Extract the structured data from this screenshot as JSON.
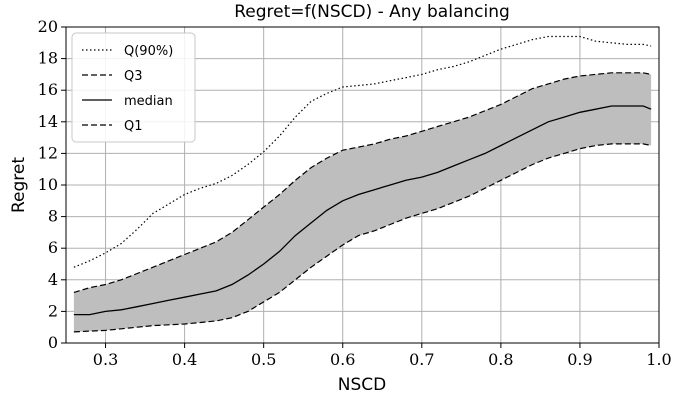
{
  "chart_data": {
    "type": "line",
    "title": "Regret=f(NSCD) - Any balancing",
    "xlabel": "NSCD",
    "ylabel": "Regret",
    "xlim": [
      0.25,
      1.0
    ],
    "ylim": [
      0,
      20
    ],
    "xticks": [
      0.3,
      0.4,
      0.5,
      0.6,
      0.7,
      0.8,
      0.9,
      1.0
    ],
    "xtick_labels": [
      "0.3",
      "0.4",
      "0.5",
      "0.6",
      "0.7",
      "0.8",
      "0.9",
      "1.0"
    ],
    "yticks": [
      0,
      2,
      4,
      6,
      8,
      10,
      12,
      14,
      16,
      18,
      20
    ],
    "ytick_labels": [
      "0",
      "2",
      "4",
      "6",
      "8",
      "10",
      "12",
      "14",
      "16",
      "18",
      "20"
    ],
    "grid": true,
    "legend_position": "top-left",
    "shaded_band": "between Q1 and Q3",
    "band_color": "#bebebe",
    "x": [
      0.26,
      0.28,
      0.3,
      0.32,
      0.34,
      0.36,
      0.38,
      0.4,
      0.42,
      0.44,
      0.46,
      0.48,
      0.5,
      0.52,
      0.54,
      0.56,
      0.58,
      0.6,
      0.62,
      0.64,
      0.66,
      0.68,
      0.7,
      0.72,
      0.74,
      0.76,
      0.78,
      0.8,
      0.82,
      0.84,
      0.86,
      0.88,
      0.9,
      0.92,
      0.94,
      0.96,
      0.98,
      0.99
    ],
    "series": [
      {
        "name": "Q(90%)",
        "style": "dotted",
        "values": [
          4.8,
          5.2,
          5.7,
          6.3,
          7.2,
          8.2,
          8.8,
          9.4,
          9.8,
          10.1,
          10.6,
          11.3,
          12.1,
          13.1,
          14.3,
          15.3,
          15.8,
          16.2,
          16.3,
          16.4,
          16.6,
          16.8,
          17.0,
          17.3,
          17.5,
          17.8,
          18.2,
          18.6,
          18.9,
          19.2,
          19.4,
          19.4,
          19.4,
          19.1,
          19.0,
          18.9,
          18.9,
          18.8
        ]
      },
      {
        "name": "Q3",
        "style": "dashed",
        "values": [
          3.2,
          3.5,
          3.7,
          4.0,
          4.4,
          4.8,
          5.2,
          5.6,
          6.0,
          6.4,
          7.0,
          7.8,
          8.6,
          9.4,
          10.3,
          11.1,
          11.7,
          12.2,
          12.4,
          12.6,
          12.9,
          13.1,
          13.4,
          13.7,
          14.0,
          14.3,
          14.7,
          15.1,
          15.6,
          16.1,
          16.4,
          16.7,
          16.9,
          17.0,
          17.1,
          17.1,
          17.1,
          17.0
        ]
      },
      {
        "name": "median",
        "style": "solid",
        "values": [
          1.8,
          1.8,
          2.0,
          2.1,
          2.3,
          2.5,
          2.7,
          2.9,
          3.1,
          3.3,
          3.7,
          4.3,
          5.0,
          5.8,
          6.8,
          7.6,
          8.4,
          9.0,
          9.4,
          9.7,
          10.0,
          10.3,
          10.5,
          10.8,
          11.2,
          11.6,
          12.0,
          12.5,
          13.0,
          13.5,
          14.0,
          14.3,
          14.6,
          14.8,
          15.0,
          15.0,
          15.0,
          14.8
        ]
      },
      {
        "name": "Q1",
        "style": "dashed",
        "values": [
          0.7,
          0.75,
          0.8,
          0.9,
          1.0,
          1.1,
          1.15,
          1.2,
          1.3,
          1.4,
          1.6,
          2.0,
          2.6,
          3.2,
          4.0,
          4.8,
          5.5,
          6.2,
          6.8,
          7.1,
          7.5,
          7.9,
          8.2,
          8.5,
          8.9,
          9.3,
          9.8,
          10.3,
          10.8,
          11.3,
          11.7,
          12.0,
          12.3,
          12.5,
          12.6,
          12.6,
          12.6,
          12.5
        ]
      }
    ]
  }
}
